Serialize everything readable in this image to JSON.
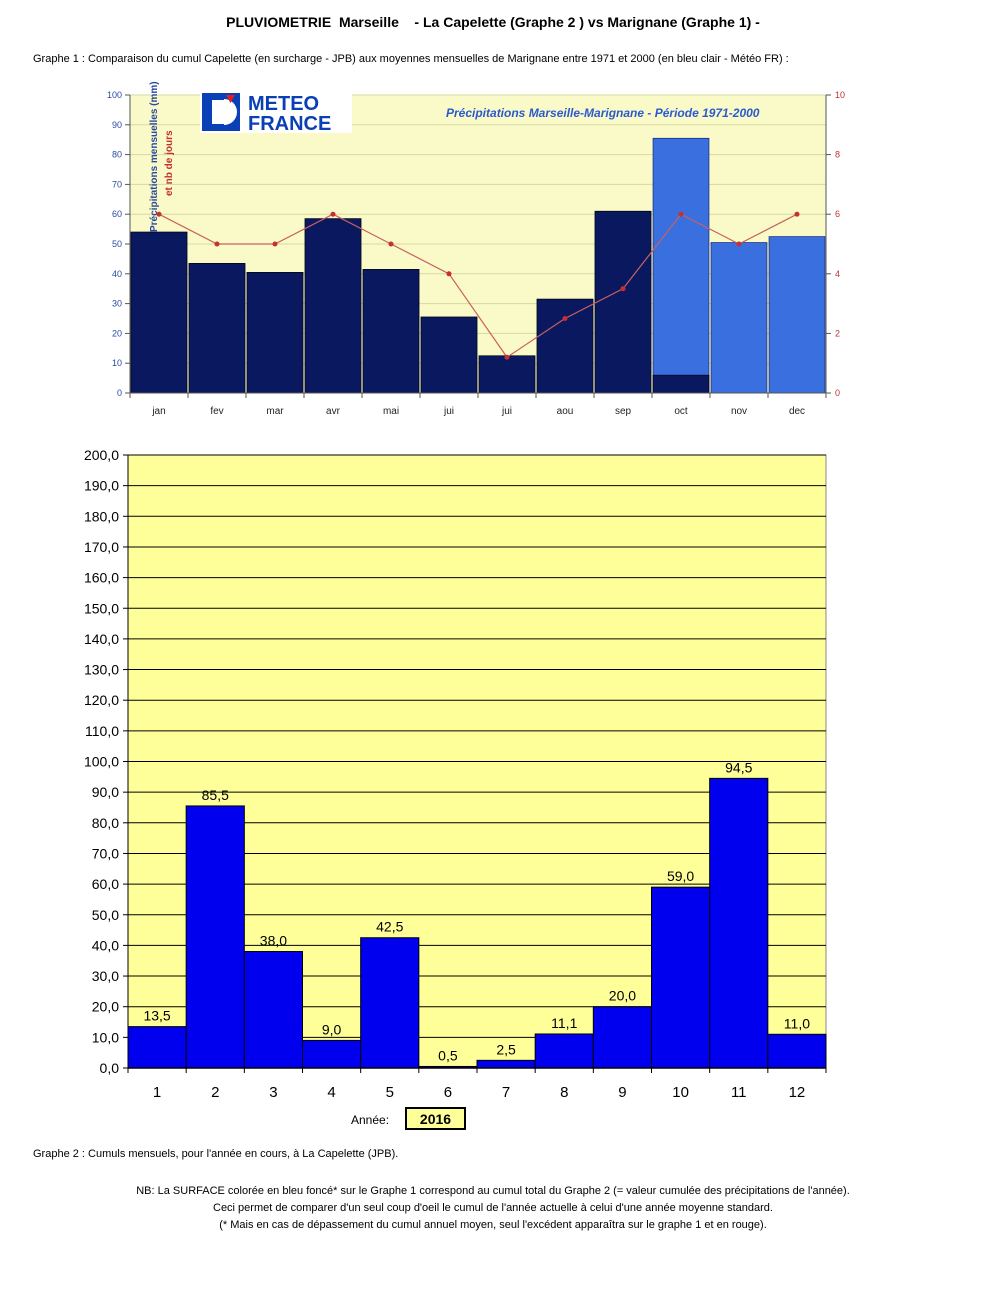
{
  "page": {
    "title": "PLUVIOMETRIE  Marseille    - La Capelette (Graphe 2 ) vs Marignane (Graphe 1) -",
    "graph1_caption": "Graphe 1 : Comparaison du cumul Capelette (en surcharge - JPB) aux moyennes mensuelles de Marignane entre 1971 et 2000 (en bleu clair - Météo FR) :",
    "graph2_caption": "Graphe 2 : Cumuls mensuels, pour l'année en cours, à La Capelette (JPB).",
    "note_lines": [
      "NB: La SURFACE colorée en bleu foncé* sur le Graphe 1 correspond au cumul total du Graphe 2 (= valeur cumulée des précipitations de l'année).",
      "Ceci permet de comparer d'un seul coup d'oeil le cumul de l'année actuelle à celui d'une année moyenne standard.",
      "(* Mais en cas de dépassement du cumul annuel moyen, seul l'excédent apparaîtra sur le graphe 1 et en rouge)."
    ],
    "logo": {
      "line1": "METEO",
      "line2": "FRANCE"
    }
  },
  "chart_data": [
    {
      "type": "bar",
      "title": "Précipitations Marseille-Marignane - Période 1971-2000",
      "ylabel": "Précipitations mensuelles (mm)",
      "y2label": "et nb de jours",
      "categories": [
        "jan",
        "fev",
        "mar",
        "avr",
        "mai",
        "jui",
        "jui",
        "aou",
        "sep",
        "oct",
        "nov",
        "dec"
      ],
      "ylim": [
        0,
        100
      ],
      "yticks": [
        "0",
        "10",
        "20",
        "30",
        "40",
        "50",
        "60",
        "70",
        "80",
        "90",
        "100"
      ],
      "y2lim": [
        0,
        10
      ],
      "y2ticks": [
        "0",
        "2",
        "4",
        "6",
        "8",
        "10"
      ],
      "series": [
        {
          "values": [
            54,
            43.5,
            40.5,
            58.5,
            41.5,
            25.5,
            12.5,
            31.5,
            61,
            85.5,
            50.5,
            52.5
          ],
          "color": "#3a6fe0"
        },
        {
          "values": [
            54,
            43.5,
            40.5,
            58.5,
            41.5,
            25.5,
            12.5,
            31.5,
            61,
            6,
            0,
            0
          ],
          "color": "#0a1860"
        },
        {
          "type": "line",
          "axis": "y2",
          "values": [
            6,
            5,
            5,
            6,
            5,
            4,
            1.2,
            2.5,
            3.5,
            6,
            5,
            6
          ],
          "color": "#c83030"
        }
      ],
      "grid": true,
      "background": "#fafac8"
    },
    {
      "type": "bar",
      "categories": [
        "1",
        "2",
        "3",
        "4",
        "5",
        "6",
        "7",
        "8",
        "9",
        "10",
        "11",
        "12"
      ],
      "values": [
        13.5,
        85.5,
        38.0,
        9.0,
        42.5,
        0.5,
        2.5,
        11.1,
        20.0,
        59.0,
        94.5,
        11.0
      ],
      "value_labels": [
        "13,5",
        "85,5",
        "38,0",
        "9,0",
        "42,5",
        "0,5",
        "2,5",
        "11,1",
        "20,0",
        "59,0",
        "94,5",
        "11,0"
      ],
      "ylim": [
        0,
        200
      ],
      "yticks": [
        "0,0",
        "10,0",
        "20,0",
        "30,0",
        "40,0",
        "50,0",
        "60,0",
        "70,0",
        "80,0",
        "90,0",
        "100,0",
        "110,0",
        "120,0",
        "130,0",
        "140,0",
        "150,0",
        "160,0",
        "170,0",
        "180,0",
        "190,0",
        "200,0"
      ],
      "bar_color": "#0000ee",
      "background": "#ffff99",
      "grid": true,
      "year_label": "Année:",
      "year_value": "2016"
    }
  ]
}
